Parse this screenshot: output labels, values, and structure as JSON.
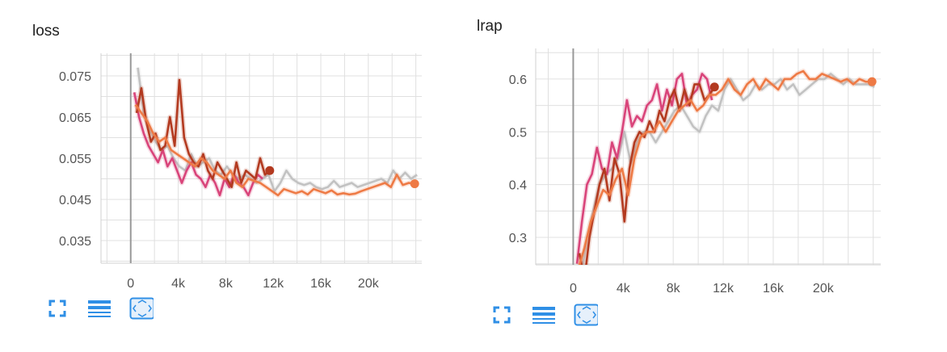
{
  "colors": {
    "gray": "#c2c2c2",
    "pink": "#d9447a",
    "dark_red": "#b33a20",
    "orange": "#ee7a45",
    "accent_blue": "#2f8fe6",
    "grid": "#e0e0e0"
  },
  "toolbar_icons": [
    "fit-to-screen-icon",
    "toggle-log-icon",
    "fit-domain-icon"
  ],
  "chart_data": [
    {
      "type": "line",
      "title": "loss",
      "xlim": [
        -2500,
        24500
      ],
      "ylim": [
        0.0295,
        0.0805
      ],
      "x_ticks": [
        0,
        4000,
        8000,
        12000,
        16000,
        20000
      ],
      "x_tick_labels": [
        "0",
        "4k",
        "8k",
        "12k",
        "16k",
        "20k"
      ],
      "y_ticks": [
        0.075,
        0.065,
        0.055,
        0.045,
        0.035
      ],
      "y_tick_labels": [
        "0.075",
        "0.065",
        "0.055",
        "0.045",
        "0.035"
      ],
      "grid": true,
      "series": [
        {
          "color": "#c2c2c2",
          "x": [
            600,
            1100,
            1600,
            2100,
            2600,
            3100,
            3600,
            4100,
            4600,
            5100,
            5600,
            6100,
            6600,
            7100,
            7600,
            8100,
            8600,
            9100,
            9600,
            10100,
            10600,
            11100,
            11600,
            12100,
            12600,
            13100,
            13600,
            14100,
            14600,
            15100,
            15600,
            16100,
            16600,
            17100,
            17600,
            18100,
            18600,
            19100,
            19600,
            20100,
            20600,
            21100,
            21600,
            22100,
            22600,
            23100,
            23600,
            24100
          ],
          "y": [
            0.077,
            0.066,
            0.062,
            0.059,
            0.057,
            0.058,
            0.055,
            0.053,
            0.052,
            0.056,
            0.053,
            0.054,
            0.055,
            0.052,
            0.051,
            0.053,
            0.051,
            0.05,
            0.051,
            0.05,
            0.049,
            0.05,
            0.051,
            0.047,
            0.049,
            0.052,
            0.05,
            0.049,
            0.0485,
            0.049,
            0.048,
            0.0475,
            0.048,
            0.0495,
            0.048,
            0.0485,
            0.049,
            0.048,
            0.0485,
            0.049,
            0.0495,
            0.05,
            0.049,
            0.052,
            0.05,
            0.0515,
            0.05,
            0.051
          ]
        },
        {
          "color": "#d9447a",
          "x": [
            300,
            700,
            1100,
            1500,
            1900,
            2300,
            2700,
            3100,
            3500,
            3900,
            4300,
            4700,
            5100,
            5500,
            5900,
            6300,
            6700,
            7100,
            7500,
            7900,
            8300,
            8700,
            9100,
            9500,
            9900,
            10300,
            10700,
            11100
          ],
          "y": [
            0.071,
            0.065,
            0.061,
            0.058,
            0.056,
            0.054,
            0.057,
            0.053,
            0.055,
            0.052,
            0.049,
            0.052,
            0.054,
            0.051,
            0.05,
            0.048,
            0.051,
            0.049,
            0.046,
            0.05,
            0.048,
            0.051,
            0.049,
            0.048,
            0.046,
            0.049,
            0.051,
            0.05
          ]
        },
        {
          "color": "#b33a20",
          "x": [
            500,
            900,
            1300,
            1700,
            2100,
            2500,
            2900,
            3300,
            3700,
            4100,
            4500,
            4900,
            5300,
            5700,
            6100,
            6500,
            6900,
            7300,
            7700,
            8100,
            8500,
            8900,
            9300,
            9700,
            10100,
            10500,
            10900,
            11300,
            11700
          ],
          "y": [
            0.066,
            0.072,
            0.064,
            0.059,
            0.061,
            0.057,
            0.058,
            0.065,
            0.058,
            0.074,
            0.06,
            0.056,
            0.054,
            0.053,
            0.056,
            0.052,
            0.05,
            0.054,
            0.052,
            0.05,
            0.048,
            0.054,
            0.049,
            0.052,
            0.051,
            0.05,
            0.055,
            0.051,
            0.052
          ]
        },
        {
          "color": "#ee7a45",
          "x": [
            400,
            900,
            1400,
            1900,
            2400,
            2900,
            3400,
            3900,
            4400,
            4900,
            5400,
            5900,
            6400,
            6900,
            7400,
            7900,
            8400,
            8900,
            9400,
            9900,
            10400,
            10900,
            11400,
            11900,
            12400,
            12900,
            13400,
            13900,
            14400,
            14900,
            15400,
            15900,
            16400,
            16900,
            17400,
            17900,
            18400,
            18900,
            19400,
            19900,
            20400,
            20900,
            21400,
            21900,
            22400,
            22900,
            23400,
            23900
          ],
          "y": [
            0.068,
            0.066,
            0.064,
            0.061,
            0.059,
            0.06,
            0.057,
            0.056,
            0.055,
            0.054,
            0.053,
            0.055,
            0.054,
            0.052,
            0.051,
            0.05,
            0.052,
            0.049,
            0.048,
            0.05,
            0.0495,
            0.049,
            0.048,
            0.047,
            0.046,
            0.0475,
            0.047,
            0.0465,
            0.047,
            0.0462,
            0.0475,
            0.047,
            0.0465,
            0.0472,
            0.0462,
            0.0465,
            0.0462,
            0.0464,
            0.047,
            0.0475,
            0.048,
            0.0485,
            0.049,
            0.048,
            0.051,
            0.0485,
            0.049,
            0.0488
          ]
        }
      ],
      "end_markers": [
        {
          "x": 11700,
          "y": 0.052,
          "color": "#b33a20"
        },
        {
          "x": 23900,
          "y": 0.0488,
          "color": "#ee7a45"
        }
      ]
    },
    {
      "type": "line",
      "title": "lrap",
      "xlim": [
        -3000,
        24600
      ],
      "ylim": [
        0.248,
        0.658
      ],
      "x_ticks": [
        0,
        4000,
        8000,
        12000,
        16000,
        20000
      ],
      "x_tick_labels": [
        "0",
        "4k",
        "8k",
        "12k",
        "16k",
        "20k"
      ],
      "y_ticks": [
        0.6,
        0.5,
        0.4,
        0.3
      ],
      "y_tick_labels": [
        "0.6",
        "0.5",
        "0.4",
        "0.3"
      ],
      "grid": true,
      "series": [
        {
          "color": "#c2c2c2",
          "x": [
            600,
            1100,
            1600,
            2100,
            2600,
            3100,
            3600,
            4100,
            4600,
            5100,
            5600,
            6100,
            6600,
            7100,
            7600,
            8100,
            8600,
            9100,
            9600,
            10100,
            10600,
            11100,
            11600,
            12100,
            12600,
            13100,
            13600,
            14100,
            14600,
            15100,
            15600,
            16100,
            16600,
            17100,
            17600,
            18100,
            18600,
            19100,
            19600,
            20100,
            20600,
            21100,
            21600,
            22100,
            22600,
            23100,
            23600,
            24100
          ],
          "y": [
            0.22,
            0.3,
            0.35,
            0.4,
            0.42,
            0.43,
            0.45,
            0.5,
            0.44,
            0.48,
            0.5,
            0.5,
            0.48,
            0.5,
            0.52,
            0.54,
            0.55,
            0.53,
            0.51,
            0.5,
            0.53,
            0.55,
            0.54,
            0.58,
            0.6,
            0.58,
            0.56,
            0.57,
            0.59,
            0.58,
            0.59,
            0.59,
            0.6,
            0.58,
            0.59,
            0.57,
            0.58,
            0.59,
            0.6,
            0.6,
            0.61,
            0.6,
            0.59,
            0.6,
            0.59,
            0.59,
            0.59,
            0.585
          ]
        },
        {
          "color": "#d9447a",
          "x": [
            300,
            700,
            1100,
            1500,
            1900,
            2300,
            2700,
            3100,
            3500,
            3900,
            4300,
            4700,
            5100,
            5500,
            5900,
            6300,
            6700,
            7100,
            7500,
            7900,
            8300,
            8700,
            9100,
            9500,
            9900,
            10300,
            10700,
            11100
          ],
          "y": [
            0.25,
            0.33,
            0.4,
            0.42,
            0.47,
            0.43,
            0.42,
            0.48,
            0.45,
            0.5,
            0.56,
            0.51,
            0.53,
            0.52,
            0.55,
            0.56,
            0.59,
            0.54,
            0.58,
            0.55,
            0.6,
            0.61,
            0.55,
            0.57,
            0.58,
            0.61,
            0.6,
            0.56
          ]
        },
        {
          "color": "#b33a20",
          "x": [
            500,
            900,
            1300,
            1700,
            2100,
            2500,
            2900,
            3300,
            3700,
            4100,
            4500,
            4900,
            5300,
            5700,
            6100,
            6500,
            6900,
            7300,
            7700,
            8100,
            8500,
            8900,
            9300,
            9700,
            10100,
            10500,
            10900,
            11300
          ],
          "y": [
            0.27,
            0.22,
            0.3,
            0.35,
            0.4,
            0.43,
            0.37,
            0.45,
            0.42,
            0.33,
            0.43,
            0.48,
            0.5,
            0.49,
            0.52,
            0.5,
            0.54,
            0.52,
            0.56,
            0.58,
            0.54,
            0.58,
            0.55,
            0.59,
            0.59,
            0.56,
            0.57,
            0.585
          ]
        },
        {
          "color": "#ee7a45",
          "x": [
            400,
            900,
            1400,
            1900,
            2400,
            2900,
            3400,
            3900,
            4400,
            4900,
            5400,
            5900,
            6400,
            6900,
            7400,
            7900,
            8400,
            8900,
            9400,
            9900,
            10400,
            10900,
            11400,
            11900,
            12400,
            12900,
            13400,
            13900,
            14400,
            14900,
            15400,
            15900,
            16400,
            16900,
            17400,
            17900,
            18400,
            18900,
            19400,
            19900,
            20400,
            20900,
            21400,
            21900,
            22400,
            22900,
            23400,
            23900
          ],
          "y": [
            0.24,
            0.28,
            0.33,
            0.36,
            0.39,
            0.38,
            0.41,
            0.43,
            0.38,
            0.45,
            0.49,
            0.5,
            0.5,
            0.52,
            0.5,
            0.52,
            0.54,
            0.55,
            0.56,
            0.54,
            0.55,
            0.57,
            0.57,
            0.58,
            0.6,
            0.58,
            0.57,
            0.59,
            0.6,
            0.58,
            0.6,
            0.59,
            0.58,
            0.6,
            0.6,
            0.61,
            0.615,
            0.6,
            0.6,
            0.61,
            0.605,
            0.6,
            0.595,
            0.6,
            0.59,
            0.6,
            0.595,
            0.595
          ]
        }
      ],
      "end_markers": [
        {
          "x": 11300,
          "y": 0.585,
          "color": "#b33a20"
        },
        {
          "x": 23900,
          "y": 0.595,
          "color": "#ee7a45"
        }
      ]
    }
  ]
}
